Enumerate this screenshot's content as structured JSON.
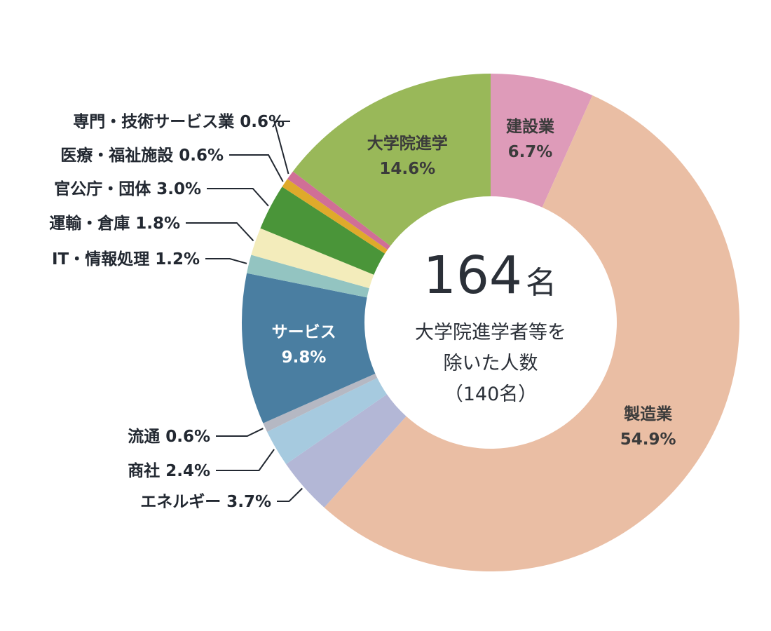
{
  "chart_data": {
    "type": "pie",
    "variant": "donut",
    "unit": "%",
    "center": {
      "total_value": "164",
      "total_unit": "名",
      "note_lines": [
        "大学院進学者等を",
        "除いた人数",
        "（140名）"
      ]
    },
    "slices": [
      {
        "label": "建設業",
        "value": 6.7,
        "value_text": "6.7%",
        "color": "#de9bb9",
        "text_color": "#3b3b3b"
      },
      {
        "label": "製造業",
        "value": 54.9,
        "value_text": "54.9%",
        "color": "#eabea4",
        "text_color": "#3b3b3b"
      },
      {
        "label": "エネルギー",
        "value": 3.7,
        "value_text": "3.7%",
        "color": "#b3b7d6",
        "text_color": "#222831"
      },
      {
        "label": "商社",
        "value": 2.4,
        "value_text": "2.4%",
        "color": "#a6cadf",
        "text_color": "#222831"
      },
      {
        "label": "流通",
        "value": 0.6,
        "value_text": "0.6%",
        "color": "#b5b8c3",
        "text_color": "#222831"
      },
      {
        "label": "サービス",
        "value": 9.8,
        "value_text": "9.8%",
        "color": "#4a7ea1",
        "text_color": "#ffffff"
      },
      {
        "label": "IT・情報処理",
        "value": 1.2,
        "value_text": "1.2%",
        "color": "#93c4c1",
        "text_color": "#222831"
      },
      {
        "label": "運輸・倉庫",
        "value": 1.8,
        "value_text": "1.8%",
        "color": "#f3ecbb",
        "text_color": "#222831"
      },
      {
        "label": "官公庁・団体",
        "value": 3.0,
        "value_text": "3.0%",
        "color": "#4a9539",
        "text_color": "#222831"
      },
      {
        "label": "医療・福祉施設",
        "value": 0.6,
        "value_text": "0.6%",
        "color": "#dfaa2b",
        "text_color": "#222831"
      },
      {
        "label": "専門・技術サービス業",
        "value": 0.6,
        "value_text": "0.6%",
        "color": "#d06f96",
        "text_color": "#222831"
      },
      {
        "label": "大学院進学",
        "value": 14.6,
        "value_text": "14.6%",
        "color": "#99b859",
        "text_color": "#3b3b3b"
      }
    ]
  }
}
